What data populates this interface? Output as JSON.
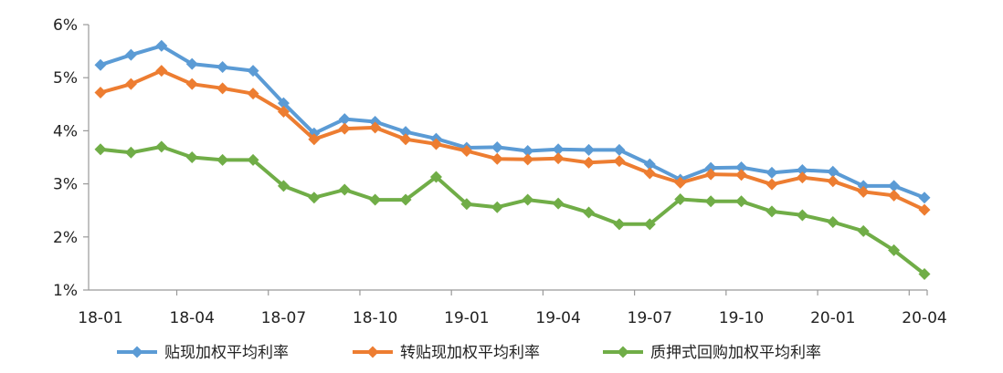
{
  "chart_data": {
    "type": "line",
    "title": "",
    "xlabel": "",
    "ylabel": "",
    "ylim": [
      1,
      6
    ],
    "y_ticks": [
      "1%",
      "2%",
      "3%",
      "4%",
      "5%",
      "6%"
    ],
    "x": [
      "18-01",
      "18-02",
      "18-03",
      "18-04",
      "18-05",
      "18-06",
      "18-07",
      "18-08",
      "18-09",
      "18-10",
      "18-11",
      "18-12",
      "19-01",
      "19-02",
      "19-03",
      "19-04",
      "19-05",
      "19-06",
      "19-07",
      "19-08",
      "19-09",
      "19-10",
      "19-11",
      "19-12",
      "20-01",
      "20-02",
      "20-03",
      "20-04"
    ],
    "x_tick_labels": [
      "18-01",
      "18-04",
      "18-07",
      "18-10",
      "19-01",
      "19-04",
      "19-07",
      "19-10",
      "20-01",
      "20-04"
    ],
    "grid": false,
    "legend_position": "bottom",
    "series": [
      {
        "name": "贴现加权平均利率",
        "color": "#5B9BD5",
        "values": [
          5.24,
          5.43,
          5.6,
          5.26,
          5.2,
          5.13,
          4.52,
          3.95,
          4.22,
          4.17,
          3.98,
          3.85,
          3.68,
          3.69,
          3.62,
          3.65,
          3.64,
          3.64,
          3.37,
          3.08,
          3.3,
          3.31,
          3.21,
          3.26,
          3.23,
          2.96,
          2.96,
          2.74
        ]
      },
      {
        "name": "转贴现加权平均利率",
        "color": "#ED7D31",
        "values": [
          4.72,
          4.88,
          5.13,
          4.88,
          4.8,
          4.7,
          4.36,
          3.84,
          4.04,
          4.06,
          3.84,
          3.75,
          3.62,
          3.47,
          3.46,
          3.48,
          3.4,
          3.43,
          3.2,
          3.02,
          3.18,
          3.17,
          2.99,
          3.12,
          3.05,
          2.85,
          2.78,
          2.51
        ]
      },
      {
        "name": "质押式回购加权平均利率",
        "color": "#70AD47",
        "values": [
          3.65,
          3.59,
          3.7,
          3.5,
          3.45,
          3.45,
          2.96,
          2.74,
          2.89,
          2.7,
          2.7,
          3.13,
          2.62,
          2.56,
          2.7,
          2.63,
          2.46,
          2.24,
          2.24,
          2.71,
          2.67,
          2.67,
          2.48,
          2.41,
          2.28,
          2.11,
          1.75,
          1.3
        ]
      }
    ]
  }
}
